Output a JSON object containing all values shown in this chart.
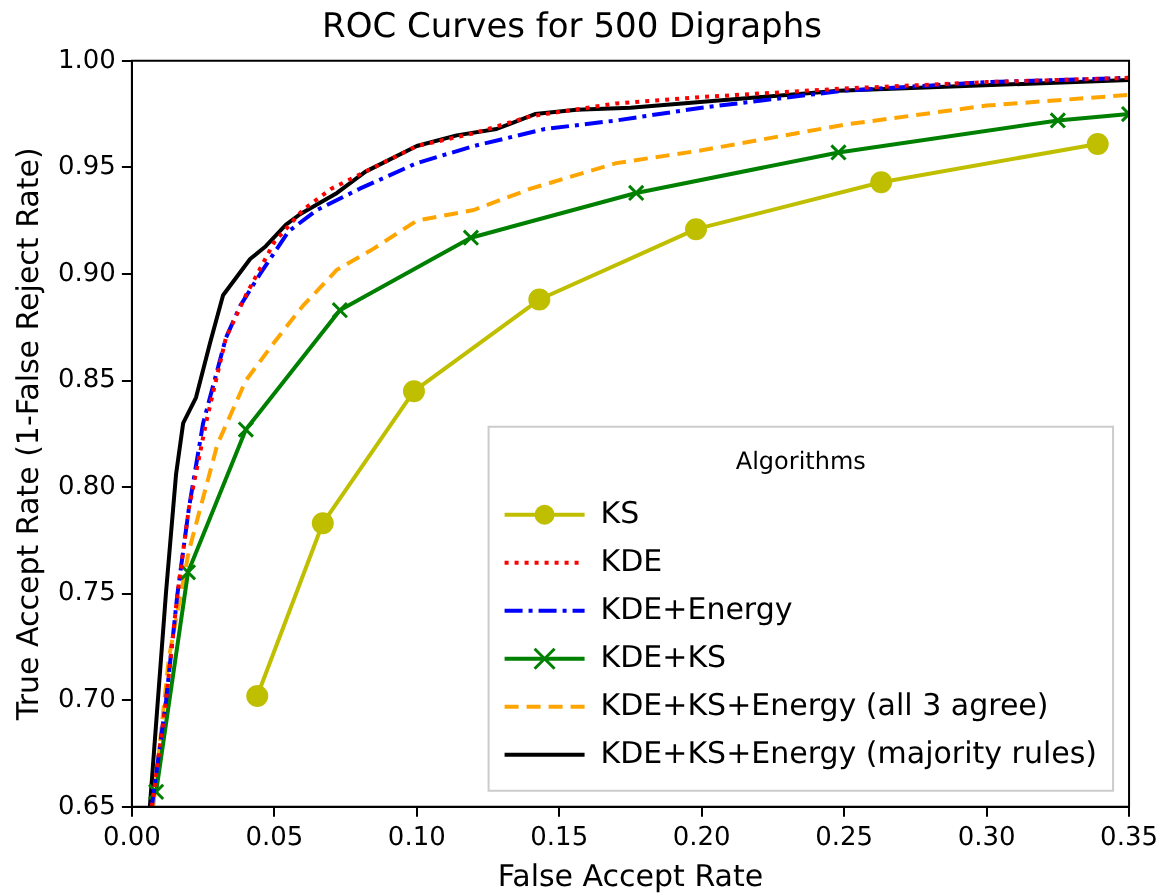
{
  "chart_data": {
    "type": "line",
    "title": "ROC Curves for 500 Digraphs",
    "xlabel": "False Accept Rate",
    "ylabel": "True Accept Rate (1-False Reject Rate)",
    "legend_title": "Algorithms",
    "legend": "bottom right",
    "grid": false,
    "xlim": [
      0,
      0.35
    ],
    "ylim": [
      0.65,
      1.0
    ],
    "xticks": [
      {
        "value": 0,
        "label": "0.00"
      },
      0.05,
      {
        "value": 0.1,
        "label": "0.10"
      },
      0.15,
      {
        "value": 0.2,
        "label": "0.20"
      },
      0.25,
      {
        "value": 0.3,
        "label": "0.30"
      },
      0.35
    ],
    "yticks": [
      0.65,
      {
        "value": 0.7,
        "label": "0.70"
      },
      0.75,
      {
        "value": 0.8,
        "label": "0.80"
      },
      0.85,
      {
        "value": 0.9,
        "label": "0.90"
      },
      0.95,
      {
        "value": 1.0,
        "label": "1.00"
      }
    ],
    "series": [
      {
        "name": "KS",
        "color": "#bfbf00",
        "marker": "circle",
        "line_style": "solid",
        "x": [
          0.044,
          0.067,
          0.099,
          0.143,
          0.198,
          0.263,
          0.339
        ],
        "values": [
          0.702,
          0.783,
          0.845,
          0.888,
          0.921,
          0.943,
          0.961
        ]
      },
      {
        "name": "KDE",
        "color": "#ff0000",
        "marker": "none",
        "line_style": "dotted",
        "x": [
          0.007,
          0.012,
          0.016,
          0.02,
          0.026,
          0.033,
          0.04,
          0.05,
          0.06,
          0.07,
          0.085,
          0.1,
          0.12,
          0.14,
          0.17,
          0.2,
          0.25,
          0.3,
          0.35
        ],
        "values": [
          0.65,
          0.7,
          0.75,
          0.79,
          0.83,
          0.87,
          0.89,
          0.915,
          0.93,
          0.94,
          0.95,
          0.96,
          0.966,
          0.974,
          0.98,
          0.983,
          0.987,
          0.99,
          0.992
        ]
      },
      {
        "name": "KDE+Energy",
        "color": "#0000ff",
        "marker": "none",
        "line_style": "dashdot",
        "x": [
          0.007,
          0.012,
          0.016,
          0.02,
          0.025,
          0.033,
          0.038,
          0.045,
          0.055,
          0.065,
          0.08,
          0.1,
          0.12,
          0.145,
          0.17,
          0.2,
          0.25,
          0.3,
          0.35
        ],
        "values": [
          0.65,
          0.7,
          0.75,
          0.79,
          0.83,
          0.87,
          0.885,
          0.9,
          0.92,
          0.93,
          0.94,
          0.952,
          0.96,
          0.968,
          0.972,
          0.978,
          0.986,
          0.99,
          0.992
        ]
      },
      {
        "name": "KDE+KS",
        "color": "#008000",
        "marker": "cross",
        "line_style": "solid",
        "x": [
          0.0085,
          0.0197,
          0.04,
          0.073,
          0.119,
          0.177,
          0.248,
          0.325,
          0.35
        ],
        "values": [
          0.657,
          0.76,
          0.827,
          0.883,
          0.917,
          0.938,
          0.957,
          0.972,
          0.975
        ]
      },
      {
        "name": "KDE+KS+Energy (all 3 agree)",
        "color": "#ffa500",
        "marker": "none",
        "line_style": "dashed",
        "x": [
          0.0075,
          0.013,
          0.02,
          0.03,
          0.04,
          0.05,
          0.06,
          0.072,
          0.085,
          0.1,
          0.12,
          0.14,
          0.17,
          0.2,
          0.25,
          0.3,
          0.35
        ],
        "values": [
          0.65,
          0.72,
          0.77,
          0.82,
          0.85,
          0.868,
          0.885,
          0.902,
          0.912,
          0.925,
          0.93,
          0.94,
          0.952,
          0.958,
          0.97,
          0.979,
          0.984
        ]
      },
      {
        "name": "KDE+KS+Energy (majority rules)",
        "color": "#000000",
        "marker": "none",
        "line_style": "solid",
        "x": [
          0.0063,
          0.012,
          0.0155,
          0.018,
          0.0225,
          0.0275,
          0.032,
          0.0415,
          0.047,
          0.054,
          0.059,
          0.072,
          0.082,
          0.1,
          0.114,
          0.128,
          0.1415,
          0.156,
          0.175,
          0.248,
          0.35
        ],
        "values": [
          0.65,
          0.751,
          0.806,
          0.83,
          0.842,
          0.868,
          0.89,
          0.907,
          0.913,
          0.923,
          0.928,
          0.938,
          0.948,
          0.96,
          0.965,
          0.968,
          0.975,
          0.977,
          0.978,
          0.986,
          0.991
        ]
      }
    ]
  }
}
